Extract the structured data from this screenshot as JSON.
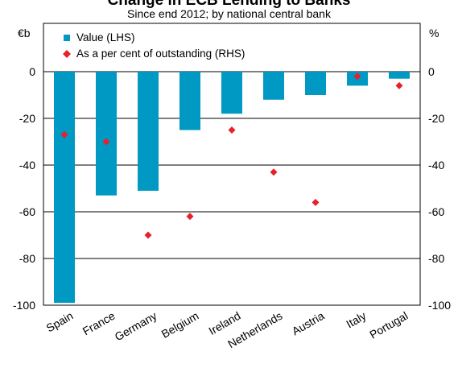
{
  "chart_data": {
    "type": "bar",
    "title": "Change in ECB Lending to Banks",
    "subtitle": "Since end 2012; by national central bank",
    "left_unit": "€b",
    "right_unit": "%",
    "ylim": [
      -100,
      0
    ],
    "yticks": [
      0,
      -20,
      -40,
      -60,
      -80,
      -100
    ],
    "grid": true,
    "legend_position": "top-left",
    "categories": [
      "Spain",
      "France",
      "Germany",
      "Belgium",
      "Ireland",
      "Netherlands",
      "Austria",
      "Italy",
      "Portugal"
    ],
    "series": [
      {
        "name": "Value (LHS)",
        "kind": "bar",
        "color": "#0099c4",
        "values": [
          -99,
          -53,
          -51,
          -25,
          -18,
          -12,
          -10,
          -6,
          -3
        ]
      },
      {
        "name": "As a per cent of outstanding (RHS)",
        "kind": "marker",
        "color": "#e8202a",
        "values": [
          -27,
          -30,
          -70,
          -62,
          -25,
          -43,
          -56,
          -2,
          -6
        ]
      }
    ]
  }
}
